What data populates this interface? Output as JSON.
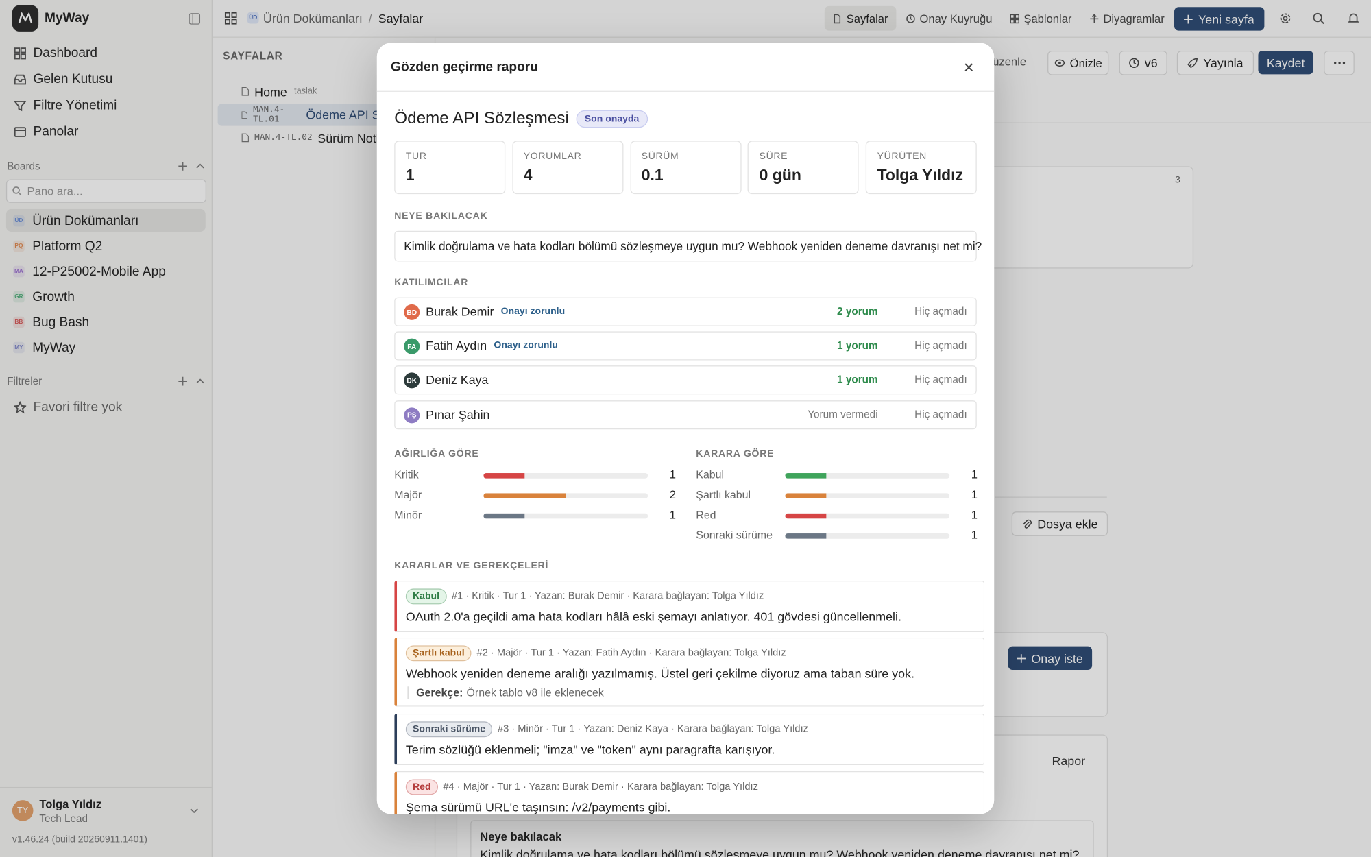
{
  "app": {
    "name": "MyWay"
  },
  "sidebar": {
    "nav": [
      "Dashboard",
      "Gelen Kutusu",
      "Filtre Yönetimi",
      "Panolar"
    ],
    "boards_title": "Boards",
    "search_placeholder": "Pano ara...",
    "boards": [
      {
        "badge": "ÜD",
        "name": "Ürün Dokümanları",
        "color": "#6b8fd6"
      },
      {
        "badge": "PQ",
        "name": "Platform Q2",
        "color": "#e0894f"
      },
      {
        "badge": "MA",
        "name": "12-P25002-Mobile App",
        "color": "#9b6fd0"
      },
      {
        "badge": "GR",
        "name": "Growth",
        "color": "#4fae7a"
      },
      {
        "badge": "BB",
        "name": "Bug Bash",
        "color": "#d65a5a"
      },
      {
        "badge": "MY",
        "name": "MyWay",
        "color": "#7f86c9"
      }
    ],
    "filters_title": "Filtreler",
    "filters_empty": "Favori filtre yok",
    "user": {
      "initials": "TY",
      "name": "Tolga Yıldız",
      "role": "Tech Lead"
    },
    "version": "v1.46.24 (build 20260911.1401)"
  },
  "topbar": {
    "breadcrumb": {
      "badge": "ÜD",
      "parent": "Ürün Dokümanları",
      "separator": "/",
      "current": "Sayfalar"
    },
    "tabs": [
      "Sayfalar",
      "Onay Kuyruğu",
      "Şablonlar",
      "Diyagramlar"
    ],
    "new_page": "Yeni sayfa"
  },
  "pages": {
    "title": "SAYFALAR",
    "items": [
      {
        "code": null,
        "name": "Home",
        "tag": "taslak"
      },
      {
        "code": "MAN.4-TL.01",
        "name": "Ödeme API Sözleşmesi",
        "tag": null
      },
      {
        "code": "MAN.4-TL.02",
        "name": "Sürüm Notları",
        "tag": null
      }
    ]
  },
  "editor": {
    "edit": "Düzenle",
    "preview": "Önizle",
    "version": "v6",
    "publish": "Yayınla",
    "save": "Kaydet",
    "card_count": "3",
    "attach": "Dosya ekle",
    "request_approval": "Onay iste",
    "report": "Rapor",
    "review_label": "Neye bakılacak",
    "review_text": "Kimlik doğrulama ve hata kodları bölümü sözleşmeye uygun mu? Webhook yeniden deneme davranışı net mi?"
  },
  "modal": {
    "title": "Gözden geçirme raporu",
    "doc_title": "Ödeme API Sözleşmesi",
    "status": "Son onayda",
    "stats": [
      {
        "label": "TUR",
        "value": "1"
      },
      {
        "label": "YORUMLAR",
        "value": "4"
      },
      {
        "label": "SÜRÜM",
        "value": "0.1"
      },
      {
        "label": "SÜRE",
        "value": "0 gün"
      },
      {
        "label": "YÜRÜTEN",
        "value": "Tolga Yıldız"
      }
    ],
    "focus_title": "NEYE BAKILACAK",
    "focus_text": "Kimlik doğrulama ve hata kodları bölümü sözleşmeye uygun mu? Webhook yeniden deneme davranışı net mi?",
    "participants_title": "KATILIMCILAR",
    "participants": [
      {
        "initials": "BD",
        "name": "Burak Demir",
        "badge": "Onayı zorunlu",
        "comments": "2 yorum",
        "seen": "Hiç açmadı",
        "color": "#e06a4a"
      },
      {
        "initials": "FA",
        "name": "Fatih Aydın",
        "badge": "Onayı zorunlu",
        "comments": "1 yorum",
        "seen": "Hiç açmadı",
        "color": "#3a9a6a"
      },
      {
        "initials": "DK",
        "name": "Deniz Kaya",
        "badge": null,
        "comments": "1 yorum",
        "seen": "Hiç açmadı",
        "color": "#2d3b3b"
      },
      {
        "initials": "PŞ",
        "name": "Pınar Şahin",
        "badge": null,
        "comments": "Yorum vermedi",
        "seen": "Hiç açmadı",
        "color": "#8e7cc3"
      }
    ],
    "severity": {
      "title": "AĞIRLIĞA GÖRE",
      "rows": [
        {
          "label": "Kritik",
          "count": 1,
          "color": "#d64545"
        },
        {
          "label": "Majör",
          "count": 2,
          "color": "#d9823b"
        },
        {
          "label": "Minör",
          "count": 1,
          "color": "#6b7785"
        }
      ]
    },
    "decision": {
      "title": "KARARA GÖRE",
      "rows": [
        {
          "label": "Kabul",
          "count": 1,
          "color": "#3fa45b"
        },
        {
          "label": "Şartlı kabul",
          "count": 1,
          "color": "#d9823b"
        },
        {
          "label": "Red",
          "count": 1,
          "color": "#d64545"
        },
        {
          "label": "Sonraki sürüme",
          "count": 1,
          "color": "#6b7785"
        }
      ]
    },
    "decisions_title": "KARARLAR VE GEREKÇELERİ",
    "decisions": [
      {
        "tag": "Kabul",
        "tag_color": "#2f7d46",
        "tag_bg": "#e4f5e8",
        "border": "#d64545",
        "meta": "#1 · Kritik · Tur 1 · Yazan: Burak Demir · Karara bağlayan: Tolga Yıldız",
        "text": "OAuth 2.0'a geçildi ama hata kodları hâlâ eski şemayı anlatıyor. 401 gövdesi güncellenmeli.",
        "reason_label": null,
        "reason": null
      },
      {
        "tag": "Şartlı kabul",
        "tag_color": "#a8631d",
        "tag_bg": "#fcefdc",
        "border": "#d9823b",
        "meta": "#2 · Majör · Tur 1 · Yazan: Fatih Aydın · Karara bağlayan: Tolga Yıldız",
        "text": "Webhook yeniden deneme aralığı yazılmamış. Üstel geri çekilme diyoruz ama taban süre yok.",
        "reason_label": "Gerekçe:",
        "reason": "Örnek tablo v8 ile eklenecek"
      },
      {
        "tag": "Sonraki sürüme",
        "tag_color": "#4a5565",
        "tag_bg": "#e8ebef",
        "border": "#2c3e5a",
        "meta": "#3 · Minör · Tur 1 · Yazan: Deniz Kaya · Karara bağlayan: Tolga Yıldız",
        "text": "Terim sözlüğü eklenmeli; \"imza\" ve \"token\" aynı paragrafta karışıyor.",
        "reason_label": null,
        "reason": null
      },
      {
        "tag": "Red",
        "tag_color": "#b33a3a",
        "tag_bg": "#fbe3e3",
        "border": "#d9823b",
        "meta": "#4 · Majör · Tur 1 · Yazan: Burak Demir · Karara bağlayan: Tolga Yıldız",
        "text": "Şema sürümü URL'e taşınsın: /v2/payments gibi.",
        "reason_label": null,
        "reason": null
      }
    ]
  }
}
